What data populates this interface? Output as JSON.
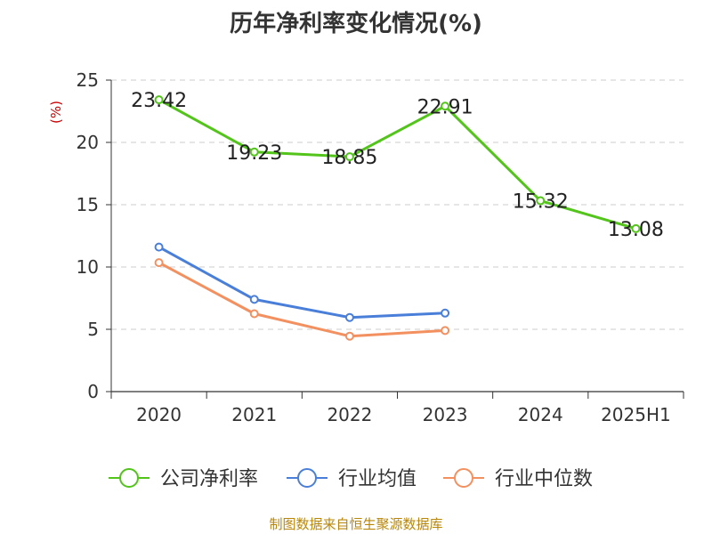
{
  "title": "历年净利率变化情况(%)",
  "source": "制图数据来自恒生聚源数据库",
  "chart_data": {
    "type": "line",
    "title": "历年净利率变化情况(%)",
    "ylabel": "(%)",
    "categories": [
      "2020",
      "2021",
      "2022",
      "2023",
      "2024",
      "2025H1"
    ],
    "ylim": [
      0,
      25
    ],
    "yticks": [
      0,
      5,
      10,
      15,
      20,
      25
    ],
    "grid": true,
    "legend": "bottom",
    "series": [
      {
        "name": "公司净利率",
        "color": "#52c41a",
        "values": [
          23.42,
          19.23,
          18.85,
          22.91,
          15.32,
          13.08
        ],
        "labels": [
          "23.42",
          "19.23",
          "18.85",
          "22.91",
          "15.32",
          "13.08"
        ]
      },
      {
        "name": "行业均值",
        "color": "#4a7fd9",
        "values": [
          11.6,
          7.4,
          5.95,
          6.3,
          null,
          null
        ],
        "labels": []
      },
      {
        "name": "行业中位数",
        "color": "#f39060",
        "values": [
          10.35,
          6.25,
          4.45,
          4.9,
          null,
          null
        ],
        "labels": []
      }
    ]
  }
}
